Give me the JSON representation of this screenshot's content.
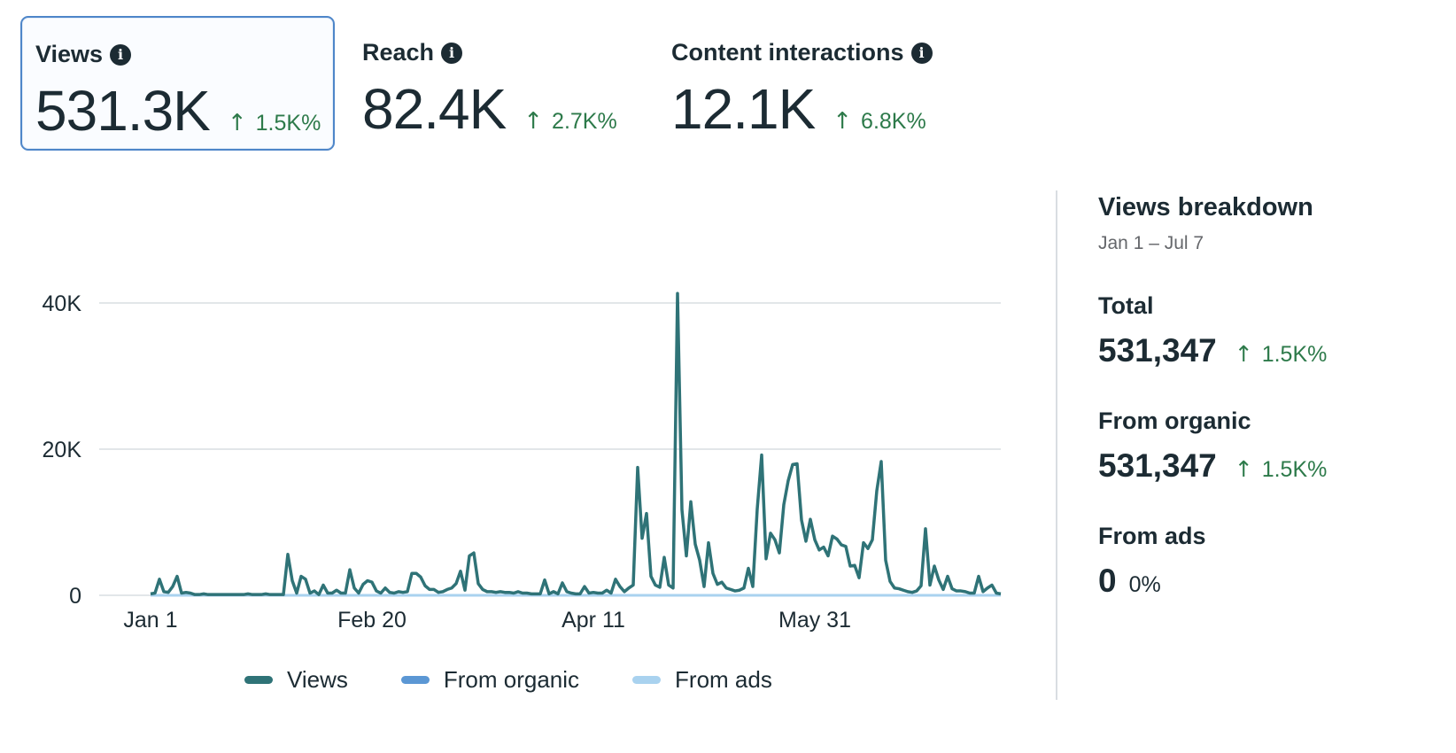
{
  "metrics": [
    {
      "label": "Views",
      "value": "531.3K",
      "delta": "1.5K%",
      "arrow": "↑",
      "selected": true
    },
    {
      "label": "Reach",
      "value": "82.4K",
      "delta": "2.7K%",
      "arrow": "↑",
      "selected": false
    },
    {
      "label": "Content interactions",
      "value": "12.1K",
      "delta": "6.8K%",
      "arrow": "↑",
      "selected": false
    }
  ],
  "info_icon_glyph": "i",
  "chart_data": {
    "type": "line",
    "title": "",
    "xlabel": "",
    "ylabel": "",
    "x_start": "Jan 1",
    "x_end": "Jul 7",
    "ylim": [
      0,
      40000
    ],
    "y_ticks": [
      0,
      20000,
      40000
    ],
    "y_tick_labels": [
      "0",
      "20K",
      "40K"
    ],
    "x_tick_labels": [
      "Jan 1",
      "Feb 20",
      "Apr 11",
      "May 31"
    ],
    "grid": true,
    "legend_position": "bottom",
    "colors": {
      "Views": "#2f7377",
      "From organic": "#5b97d4",
      "From ads": "#a9d2ef",
      "grid": "#d8dde2"
    },
    "series": [
      {
        "name": "Views",
        "values": [
          200,
          300,
          2200,
          500,
          400,
          1200,
          2600,
          300,
          400,
          300,
          100,
          100,
          200,
          100,
          100,
          100,
          100,
          100,
          100,
          100,
          100,
          100,
          200,
          100,
          100,
          100,
          200,
          100,
          100,
          100,
          100,
          5600,
          2000,
          300,
          2600,
          2200,
          300,
          600,
          100,
          1400,
          300,
          300,
          700,
          300,
          300,
          3500,
          1000,
          300,
          1500,
          2000,
          1800,
          600,
          300,
          1000,
          400,
          300,
          500,
          400,
          500,
          3000,
          3000,
          2500,
          1300,
          800,
          800,
          400,
          500,
          800,
          1000,
          1600,
          3300,
          700,
          5400,
          5800,
          1600,
          800,
          500,
          500,
          400,
          500,
          400,
          400,
          300,
          500,
          300,
          300,
          200,
          200,
          200,
          2100,
          200,
          500,
          200,
          1700,
          500,
          300,
          200,
          200,
          1200,
          300,
          400,
          300,
          300,
          700,
          300,
          2200,
          1200,
          500,
          1000,
          1400,
          17500,
          7800,
          11200,
          2600,
          1400,
          1100,
          5200,
          1400,
          1000,
          41300,
          11700,
          5400,
          12800,
          7000,
          4800,
          1200,
          7200,
          3000,
          1500,
          1800,
          1000,
          800,
          600,
          700,
          1000,
          3700,
          1200,
          11800,
          19200,
          5000,
          8500,
          7600,
          5800,
          12400,
          15700,
          17900,
          18000,
          10300,
          7400,
          10400,
          7600,
          6200,
          6600,
          5400,
          8100,
          7700,
          6900,
          6700,
          4000,
          4100,
          2400,
          7200,
          6400,
          7600,
          14300,
          18300,
          4800,
          1900,
          1000,
          900,
          700,
          500,
          400,
          600,
          1300,
          9100,
          1400,
          4000,
          2100,
          800,
          2600,
          900,
          600,
          600,
          500,
          300,
          300,
          2600,
          500,
          1000,
          1400,
          300,
          200
        ]
      },
      {
        "name": "From organic",
        "values": []
      },
      {
        "name": "From ads",
        "values": [
          0
        ]
      }
    ]
  },
  "legend": [
    {
      "label": "Views",
      "color": "#2f7377"
    },
    {
      "label": "From organic",
      "color": "#5b97d4"
    },
    {
      "label": "From ads",
      "color": "#a9d2ef"
    }
  ],
  "breakdown": {
    "title": "Views breakdown",
    "date_range": "Jan 1 – Jul 7",
    "total": {
      "label": "Total",
      "value": "531,347",
      "arrow": "↑",
      "delta": "1.5K%"
    },
    "organic": {
      "label": "From organic",
      "value": "531,347",
      "arrow": "↑",
      "delta": "1.5K%"
    },
    "ads": {
      "label": "From ads",
      "value": "0",
      "pct": "0%"
    }
  }
}
